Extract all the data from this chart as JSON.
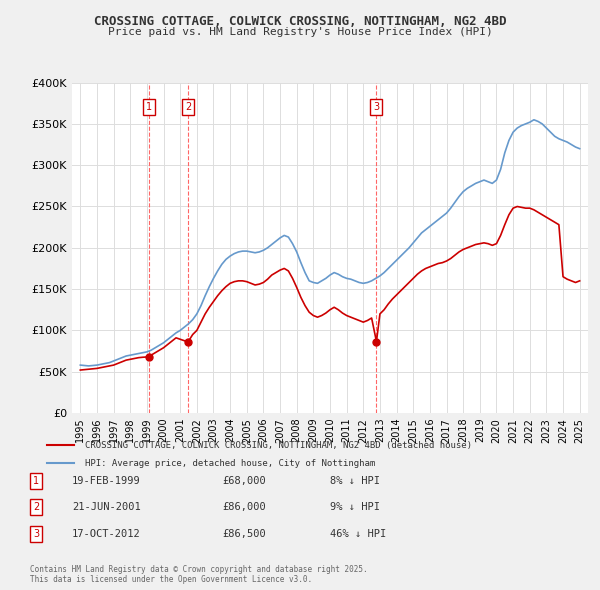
{
  "title": "CROSSING COTTAGE, COLWICK CROSSING, NOTTINGHAM, NG2 4BD",
  "subtitle": "Price paid vs. HM Land Registry's House Price Index (HPI)",
  "background_color": "#f0f0f0",
  "plot_bg_color": "#ffffff",
  "legend_line1": "CROSSING COTTAGE, COLWICK CROSSING, NOTTINGHAM, NG2 4BD (detached house)",
  "legend_line2": "HPI: Average price, detached house, City of Nottingham",
  "footer": "Contains HM Land Registry data © Crown copyright and database right 2025.\nThis data is licensed under the Open Government Licence v3.0.",
  "transactions": [
    {
      "num": 1,
      "date": "19-FEB-1999",
      "price": 68000,
      "hpi_diff": "8% ↓ HPI",
      "year": 1999.12
    },
    {
      "num": 2,
      "date": "21-JUN-2001",
      "price": 86000,
      "hpi_diff": "9% ↓ HPI",
      "year": 2001.47
    },
    {
      "num": 3,
      "date": "17-OCT-2012",
      "price": 86500,
      "hpi_diff": "46% ↓ HPI",
      "year": 2012.79
    }
  ],
  "hpi_data": {
    "years": [
      1995.0,
      1995.25,
      1995.5,
      1995.75,
      1996.0,
      1996.25,
      1996.5,
      1996.75,
      1997.0,
      1997.25,
      1997.5,
      1997.75,
      1998.0,
      1998.25,
      1998.5,
      1998.75,
      1999.0,
      1999.25,
      1999.5,
      1999.75,
      2000.0,
      2000.25,
      2000.5,
      2000.75,
      2001.0,
      2001.25,
      2001.5,
      2001.75,
      2002.0,
      2002.25,
      2002.5,
      2002.75,
      2003.0,
      2003.25,
      2003.5,
      2003.75,
      2004.0,
      2004.25,
      2004.5,
      2004.75,
      2005.0,
      2005.25,
      2005.5,
      2005.75,
      2006.0,
      2006.25,
      2006.5,
      2006.75,
      2007.0,
      2007.25,
      2007.5,
      2007.75,
      2008.0,
      2008.25,
      2008.5,
      2008.75,
      2009.0,
      2009.25,
      2009.5,
      2009.75,
      2010.0,
      2010.25,
      2010.5,
      2010.75,
      2011.0,
      2011.25,
      2011.5,
      2011.75,
      2012.0,
      2012.25,
      2012.5,
      2012.75,
      2013.0,
      2013.25,
      2013.5,
      2013.75,
      2014.0,
      2014.25,
      2014.5,
      2014.75,
      2015.0,
      2015.25,
      2015.5,
      2015.75,
      2016.0,
      2016.25,
      2016.5,
      2016.75,
      2017.0,
      2017.25,
      2017.5,
      2017.75,
      2018.0,
      2018.25,
      2018.5,
      2018.75,
      2019.0,
      2019.25,
      2019.5,
      2019.75,
      2020.0,
      2020.25,
      2020.5,
      2020.75,
      2021.0,
      2021.25,
      2021.5,
      2021.75,
      2022.0,
      2022.25,
      2022.5,
      2022.75,
      2023.0,
      2023.25,
      2023.5,
      2023.75,
      2024.0,
      2024.25,
      2024.5,
      2024.75,
      2025.0
    ],
    "values": [
      58000,
      57500,
      57000,
      57500,
      58000,
      59000,
      60000,
      61000,
      63000,
      65000,
      67000,
      69000,
      70000,
      71000,
      72000,
      73000,
      74000,
      76000,
      79000,
      82000,
      85000,
      89000,
      93000,
      97000,
      100000,
      104000,
      108000,
      113000,
      120000,
      130000,
      142000,
      153000,
      163000,
      172000,
      180000,
      186000,
      190000,
      193000,
      195000,
      196000,
      196000,
      195000,
      194000,
      195000,
      197000,
      200000,
      204000,
      208000,
      212000,
      215000,
      213000,
      205000,
      195000,
      182000,
      170000,
      160000,
      158000,
      157000,
      160000,
      163000,
      167000,
      170000,
      168000,
      165000,
      163000,
      162000,
      160000,
      158000,
      157000,
      158000,
      160000,
      163000,
      166000,
      170000,
      175000,
      180000,
      185000,
      190000,
      195000,
      200000,
      206000,
      212000,
      218000,
      222000,
      226000,
      230000,
      234000,
      238000,
      242000,
      248000,
      255000,
      262000,
      268000,
      272000,
      275000,
      278000,
      280000,
      282000,
      280000,
      278000,
      282000,
      295000,
      315000,
      330000,
      340000,
      345000,
      348000,
      350000,
      352000,
      355000,
      353000,
      350000,
      345000,
      340000,
      335000,
      332000,
      330000,
      328000,
      325000,
      322000,
      320000
    ]
  },
  "price_paid_data": {
    "years": [
      1995.0,
      1995.25,
      1995.5,
      1995.75,
      1996.0,
      1996.25,
      1996.5,
      1996.75,
      1997.0,
      1997.25,
      1997.5,
      1997.75,
      1998.0,
      1998.25,
      1998.5,
      1998.75,
      1999.12,
      1999.25,
      1999.5,
      1999.75,
      2000.0,
      2000.25,
      2000.5,
      2000.75,
      2001.47,
      2001.75,
      2002.0,
      2002.25,
      2002.5,
      2002.75,
      2003.0,
      2003.25,
      2003.5,
      2003.75,
      2004.0,
      2004.25,
      2004.5,
      2004.75,
      2005.0,
      2005.25,
      2005.5,
      2005.75,
      2006.0,
      2006.25,
      2006.5,
      2006.75,
      2007.0,
      2007.25,
      2007.5,
      2007.75,
      2008.0,
      2008.25,
      2008.5,
      2008.75,
      2009.0,
      2009.25,
      2009.5,
      2009.75,
      2010.0,
      2010.25,
      2010.5,
      2010.75,
      2011.0,
      2011.25,
      2011.5,
      2011.75,
      2012.0,
      2012.25,
      2012.5,
      2012.79,
      2013.0,
      2013.25,
      2013.5,
      2013.75,
      2014.0,
      2014.25,
      2014.5,
      2014.75,
      2015.0,
      2015.25,
      2015.5,
      2015.75,
      2016.0,
      2016.25,
      2016.5,
      2016.75,
      2017.0,
      2017.25,
      2017.5,
      2017.75,
      2018.0,
      2018.25,
      2018.5,
      2018.75,
      2019.0,
      2019.25,
      2019.5,
      2019.75,
      2020.0,
      2020.25,
      2020.5,
      2020.75,
      2021.0,
      2021.25,
      2021.5,
      2021.75,
      2022.0,
      2022.25,
      2022.5,
      2022.75,
      2023.0,
      2023.25,
      2023.5,
      2023.75,
      2024.0,
      2024.25,
      2024.5,
      2024.75,
      2025.0
    ],
    "values": [
      52000,
      52500,
      53000,
      53500,
      54000,
      55000,
      56000,
      57000,
      58000,
      60000,
      62000,
      64000,
      65000,
      66000,
      67000,
      67500,
      68000,
      70000,
      73000,
      76000,
      79000,
      83000,
      87000,
      91000,
      86000,
      95000,
      100000,
      110000,
      120000,
      128000,
      135000,
      142000,
      148000,
      153000,
      157000,
      159000,
      160000,
      160000,
      159000,
      157000,
      155000,
      156000,
      158000,
      162000,
      167000,
      170000,
      173000,
      175000,
      172000,
      163000,
      152000,
      140000,
      130000,
      122000,
      118000,
      116000,
      118000,
      121000,
      125000,
      128000,
      125000,
      121000,
      118000,
      116000,
      114000,
      112000,
      110000,
      112000,
      115000,
      86500,
      120000,
      125000,
      132000,
      138000,
      143000,
      148000,
      153000,
      158000,
      163000,
      168000,
      172000,
      175000,
      177000,
      179000,
      181000,
      182000,
      184000,
      187000,
      191000,
      195000,
      198000,
      200000,
      202000,
      204000,
      205000,
      206000,
      205000,
      203000,
      205000,
      215000,
      228000,
      240000,
      248000,
      250000,
      249000,
      248000,
      248000,
      246000,
      243000,
      240000,
      237000,
      234000,
      231000,
      228000,
      165000,
      162000,
      160000,
      158000,
      160000
    ]
  },
  "ylim": [
    0,
    400000
  ],
  "xlim": [
    1994.5,
    2025.5
  ],
  "yticks": [
    0,
    50000,
    100000,
    150000,
    200000,
    250000,
    300000,
    350000,
    400000
  ],
  "ytick_labels": [
    "£0",
    "£50K",
    "£100K",
    "£150K",
    "£200K",
    "£250K",
    "£300K",
    "£350K",
    "£400K"
  ],
  "xticks": [
    1995,
    1996,
    1997,
    1998,
    1999,
    2000,
    2001,
    2002,
    2003,
    2004,
    2005,
    2006,
    2007,
    2008,
    2009,
    2010,
    2011,
    2012,
    2013,
    2014,
    2015,
    2016,
    2017,
    2018,
    2019,
    2020,
    2021,
    2022,
    2023,
    2024,
    2025
  ],
  "red_color": "#cc0000",
  "blue_color": "#6699cc",
  "marker_color": "#cc0000",
  "vline_color": "#ff6666",
  "grid_color": "#dddddd",
  "box_color": "#cc0000"
}
